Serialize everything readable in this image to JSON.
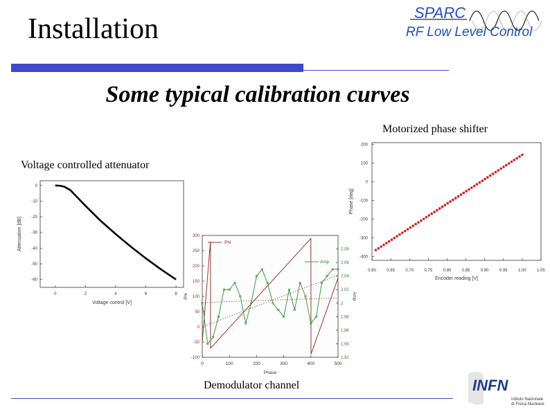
{
  "header": {
    "title": "Installation",
    "logo_brand": "SPARC",
    "logo_subtitle": "RF Low Level Control"
  },
  "slide": {
    "subtitle": "Some typical calibration curves",
    "caption_phase_shifter": "Motorized phase shifter",
    "caption_attenuator": "Voltage controlled attenuator",
    "caption_demod": "Demodulator channel"
  },
  "footer": {
    "logo_infn": "INFN",
    "logo_infn_line1": "Istituto Nazionale",
    "logo_infn_line2": "di Fisica Nucleare"
  },
  "colors": {
    "accent": "#3d49c8",
    "red_series": "#d42020",
    "green_series": "#3c9a3c",
    "brown_series": "#9a3434"
  },
  "chart_data": [
    {
      "type": "line",
      "xlabel": "Voltage control [V]",
      "ylabel": "Attenuation [dB]",
      "xlim": [
        -1,
        8.5
      ],
      "ylim": [
        -65,
        3
      ],
      "x_ticks": [
        0,
        2,
        4,
        6,
        8
      ],
      "y_ticks": [
        0,
        -10,
        -20,
        -30,
        -40,
        -50,
        -60
      ],
      "series": [
        {
          "x": [
            0,
            0.3,
            0.6,
            1,
            2,
            3,
            4,
            5,
            6,
            7,
            8
          ],
          "y": [
            0,
            -0.2,
            -0.8,
            -3,
            -13,
            -22.5,
            -31,
            -39,
            -46.5,
            -53.5,
            -60
          ]
        }
      ]
    },
    {
      "type": "scatter",
      "xlabel": "Encoder reading [V]",
      "ylabel": "Phase [deg]",
      "xlim": [
        0.6,
        1.05
      ],
      "ylim": [
        -420,
        210
      ],
      "x_ticks": [
        0.6,
        0.65,
        0.7,
        0.75,
        0.8,
        0.85,
        0.9,
        0.95,
        1.0,
        1.05
      ],
      "x_tick_labels": [
        "0.60",
        "0.65",
        "0.70",
        "0.75",
        "0.80",
        "0.85",
        "0.90",
        "0.95",
        "1.00",
        "1.05"
      ],
      "y_ticks": [
        200,
        100,
        0,
        -100,
        -200,
        -300,
        -400
      ],
      "series": [
        {
          "x_range": [
            0.61,
            1.0
          ],
          "y_range": [
            -365,
            145
          ],
          "points": 56
        }
      ]
    },
    {
      "type": "line",
      "xlabel": "Phase",
      "ylabel": "Phi",
      "ylabel2": "Amp",
      "xlim": [
        0,
        500
      ],
      "ylim": [
        -100,
        300
      ],
      "y2lim": [
        1.92,
        2.1
      ],
      "x_ticks": [
        0,
        100,
        200,
        300,
        400,
        500
      ],
      "y_ticks": [
        300,
        250,
        200,
        150,
        100,
        50,
        0,
        -50,
        -100
      ],
      "y2_ticks": [
        2.08,
        2.06,
        2.04,
        2.02,
        2,
        1.98,
        1.96,
        1.94,
        1.92
      ],
      "y2_tick_labels": [
        "2,08",
        "2,06",
        "2,04",
        "2,02",
        "2",
        "1,98",
        "1,96",
        "1,94",
        "1,92"
      ],
      "legend": [
        "Phi",
        "Amp"
      ],
      "series": [
        {
          "name": "Phi",
          "axis": "y",
          "x": [
            0,
            30,
            30.5,
            400,
            400.5,
            500
          ],
          "y": [
            -50,
            280,
            -70,
            290,
            -90,
            160
          ]
        },
        {
          "name": "Amp",
          "axis": "y2",
          "x": [
            0,
            20,
            40,
            60,
            80,
            100,
            120,
            140,
            160,
            180,
            200,
            220,
            240,
            260,
            280,
            300,
            320,
            340,
            360,
            380,
            400,
            420,
            440,
            460,
            480,
            500
          ],
          "y": [
            2.0,
            1.94,
            1.95,
            1.98,
            2.02,
            2.02,
            2.03,
            2.01,
            1.97,
            2.0,
            2.04,
            2.05,
            2.03,
            2.0,
            1.99,
            1.98,
            2.02,
            1.99,
            2.03,
            2.01,
            1.97,
            1.98,
            2.03,
            2.04,
            2.05,
            2.05
          ]
        },
        {
          "name": "",
          "axis": "y",
          "x": [
            0,
            500
          ],
          "y": [
            0,
            170
          ],
          "dotted": true
        },
        {
          "name": "",
          "axis": "y",
          "x": [
            0,
            500
          ],
          "y": [
            80,
            95
          ],
          "dotted": true
        }
      ]
    }
  ]
}
